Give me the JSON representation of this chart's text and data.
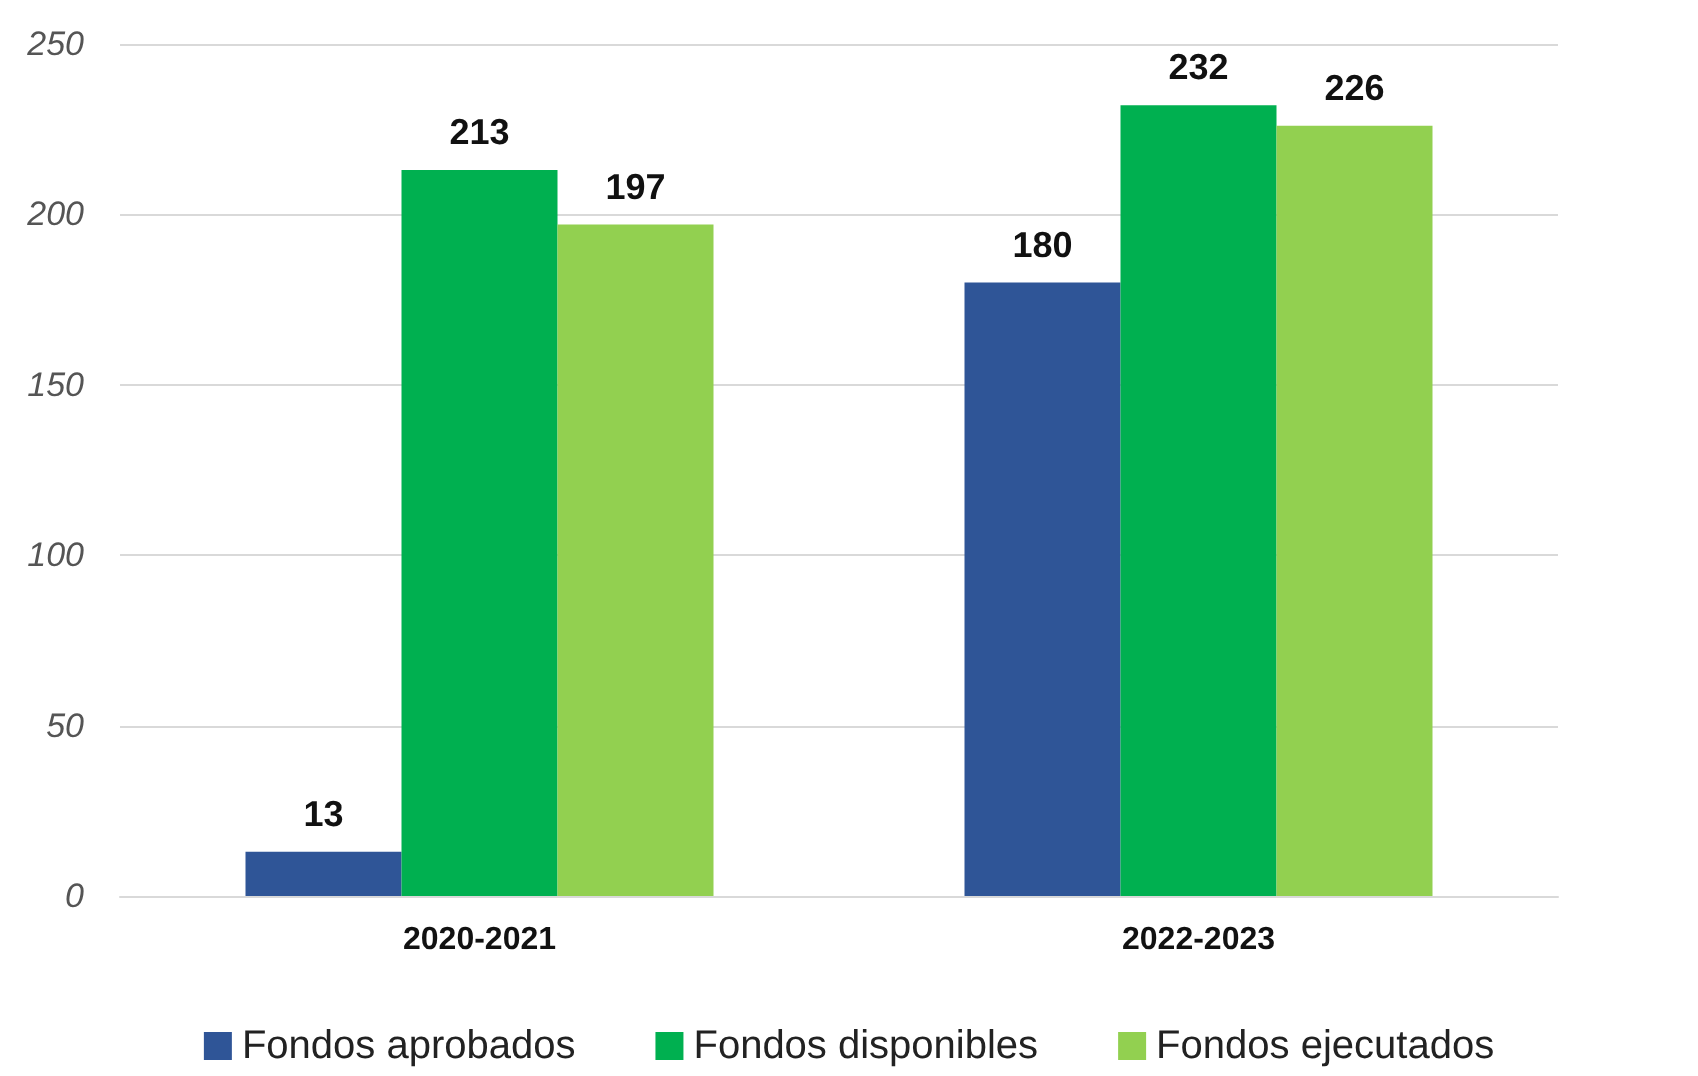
{
  "chart_data": {
    "type": "bar",
    "categories": [
      "2020-2021",
      "2022-2023"
    ],
    "series": [
      {
        "name": "Fondos aprobados",
        "color": "#2f5597",
        "values": [
          13,
          180
        ]
      },
      {
        "name": "Fondos disponibles",
        "color": "#00b050",
        "values": [
          213,
          232
        ]
      },
      {
        "name": "Fondos ejecutados",
        "color": "#92d050",
        "values": [
          197,
          226
        ]
      }
    ],
    "ylim": [
      0,
      250
    ],
    "yticks": [
      0,
      50,
      100,
      150,
      200,
      250
    ],
    "grid": "y",
    "legend": "bottom",
    "data_labels": true
  }
}
